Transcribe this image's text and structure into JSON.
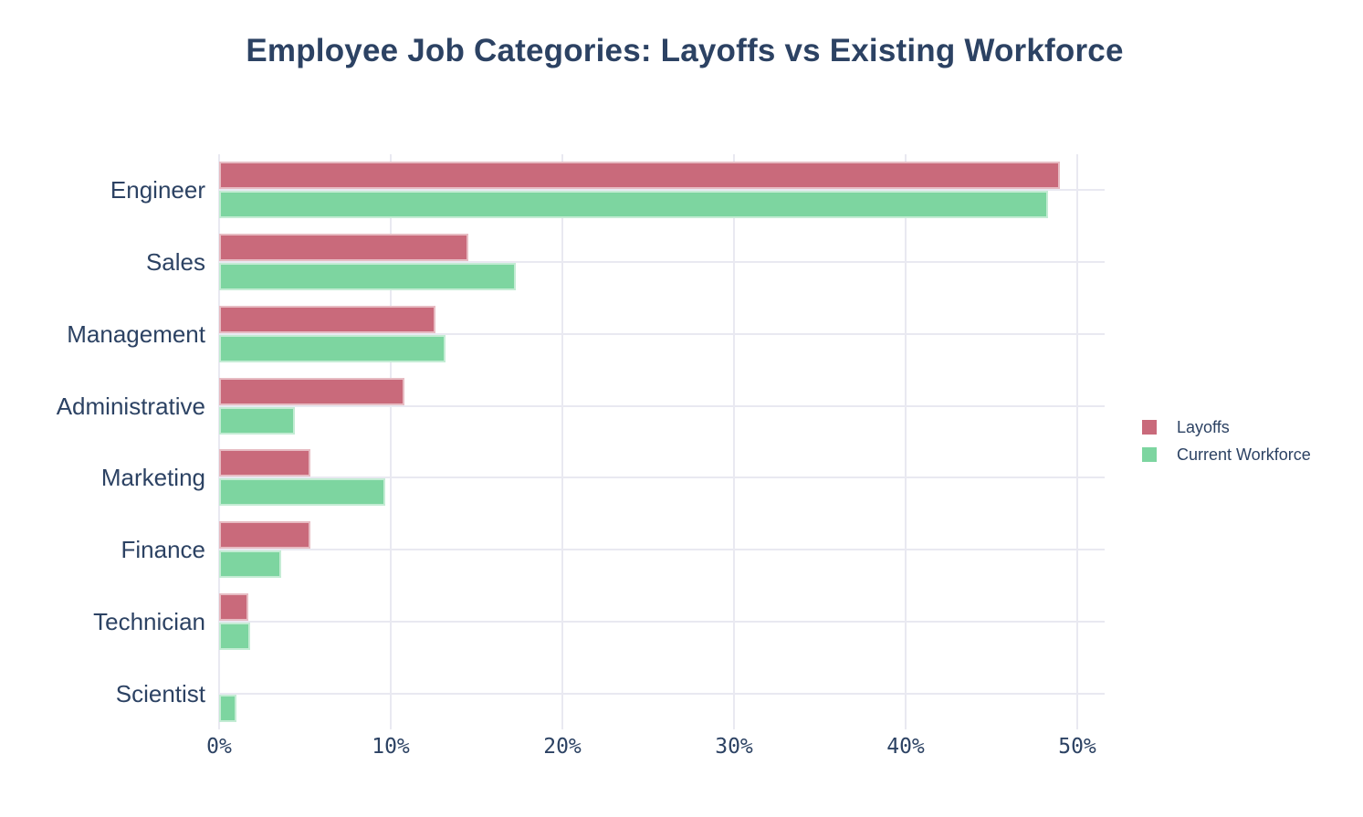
{
  "title": "Employee Job Categories: Layoffs vs Existing Workforce",
  "chart_data": {
    "type": "bar",
    "orientation": "horizontal",
    "title": "Employee Job Categories: Layoffs vs Existing Workforce",
    "categories": [
      "Engineer",
      "Sales",
      "Management",
      "Administrative",
      "Marketing",
      "Finance",
      "Technician",
      "Scientist"
    ],
    "series": [
      {
        "name": "Layoffs",
        "color": "#c96a7b",
        "values": [
          49.0,
          14.5,
          12.6,
          10.8,
          5.3,
          5.3,
          1.7,
          0.0
        ]
      },
      {
        "name": "Current Workforce",
        "color": "#7dd5a0",
        "values": [
          48.3,
          17.3,
          13.2,
          4.4,
          9.7,
          3.6,
          1.8,
          1.0
        ]
      }
    ],
    "x_tick_labels": [
      "0%",
      "10%",
      "20%",
      "30%",
      "40%",
      "50%"
    ],
    "x_tick_values": [
      0,
      10,
      20,
      30,
      40,
      50
    ],
    "xlim": [
      0,
      51.6
    ],
    "value_unit": "percent",
    "grid": true,
    "legend_position": "right"
  },
  "colors": {
    "text": "#2c4263",
    "grid": "#e9e9f1",
    "background": "#ffffff",
    "layoffs": "#c96a7b",
    "workforce": "#7dd5a0"
  }
}
